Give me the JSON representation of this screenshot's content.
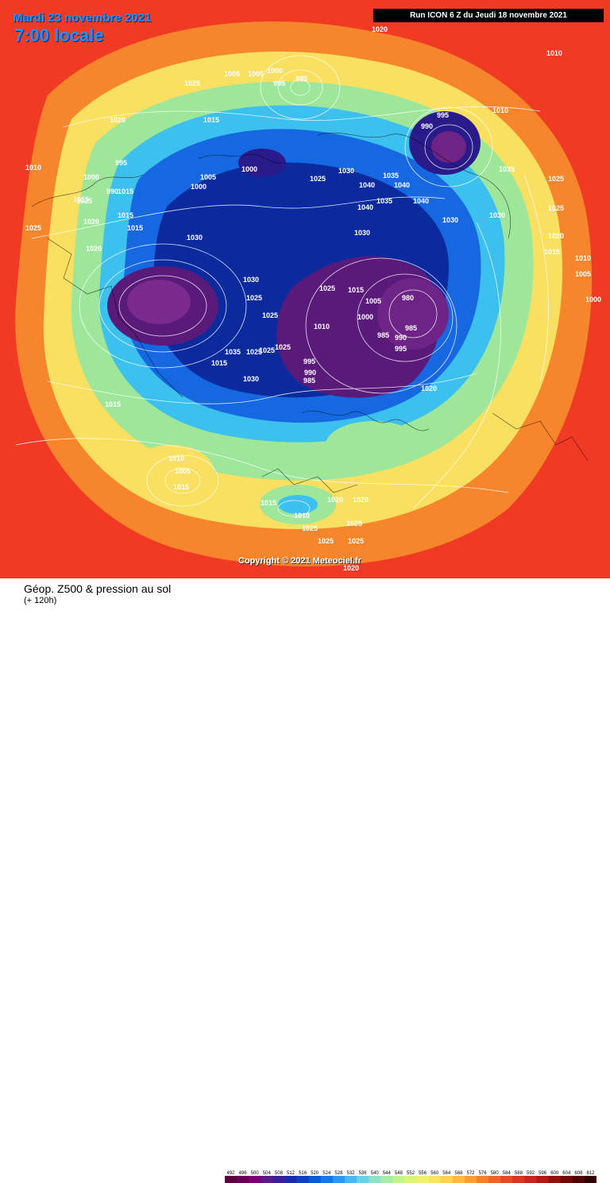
{
  "header": {
    "date": "Mardi 23 novembre 2021",
    "time": "7:00 locale",
    "run": "Run ICON 6 Z du Jeudi 18 novembre 2021",
    "copyright": "Copyright © 2021 Meteociel.fr"
  },
  "footer": {
    "title": "Géop. Z500 & pression au sol",
    "subtitle": "(+ 120h)"
  },
  "legend": {
    "labels": [
      "492",
      "496",
      "500",
      "504",
      "508",
      "512",
      "516",
      "520",
      "524",
      "528",
      "532",
      "536",
      "540",
      "544",
      "548",
      "552",
      "556",
      "560",
      "564",
      "568",
      "572",
      "576",
      "580",
      "584",
      "588",
      "592",
      "596",
      "600",
      "604",
      "608",
      "612"
    ],
    "colors": [
      "#5a003c",
      "#6a0055",
      "#7c0070",
      "#5a1a8a",
      "#3a1f99",
      "#1a2aa8",
      "#0d3fc0",
      "#0a5ad6",
      "#1478e8",
      "#2a98f0",
      "#48b6ef",
      "#6ad0e4",
      "#8ee0c8",
      "#a8ecac",
      "#c4f28e",
      "#dcf47a",
      "#f0f070",
      "#f8e460",
      "#fcd050",
      "#fcb840",
      "#f89c34",
      "#f4802c",
      "#ee6428",
      "#e44a26",
      "#d83424",
      "#c82222",
      "#b01818",
      "#901010",
      "#700808",
      "#500404",
      "#300000"
    ]
  },
  "map": {
    "colors": {
      "warm_outer": "#f03a24",
      "orange": "#f7852c",
      "yellow": "#f9e060",
      "green": "#9ee69a",
      "cyan": "#3cc0ee",
      "blue": "#1668e0",
      "darkblue": "#0a2a9e",
      "purple": "#5a1a7a"
    },
    "isobar_labels": [
      "1020",
      "1010",
      "1005",
      "1005",
      "1000",
      "995",
      "985",
      "1025",
      "1020",
      "1015",
      "1010",
      "1000",
      "995",
      "990",
      "1015",
      "1020",
      "1015",
      "1015",
      "1025",
      "1025",
      "1015",
      "1020",
      "1030",
      "1000",
      "995",
      "990",
      "1010",
      "1005",
      "1000",
      "1035",
      "1025",
      "1030",
      "1030",
      "1030",
      "1025",
      "1035",
      "1040",
      "1040",
      "1040",
      "1035",
      "1040",
      "1030",
      "1025",
      "1015",
      "1005",
      "1010",
      "1000",
      "980",
      "985",
      "985",
      "990",
      "995",
      "995",
      "990",
      "985",
      "1020",
      "1030",
      "1025",
      "1025",
      "1025",
      "1015",
      "1025",
      "1025",
      "1035",
      "1030",
      "1025",
      "1020",
      "1015",
      "1010",
      "1005",
      "1000",
      "1015",
      "1010",
      "1005",
      "1015",
      "1015",
      "1010",
      "1020",
      "1020",
      "1025",
      "1025",
      "1025",
      "1025",
      "1020"
    ]
  }
}
